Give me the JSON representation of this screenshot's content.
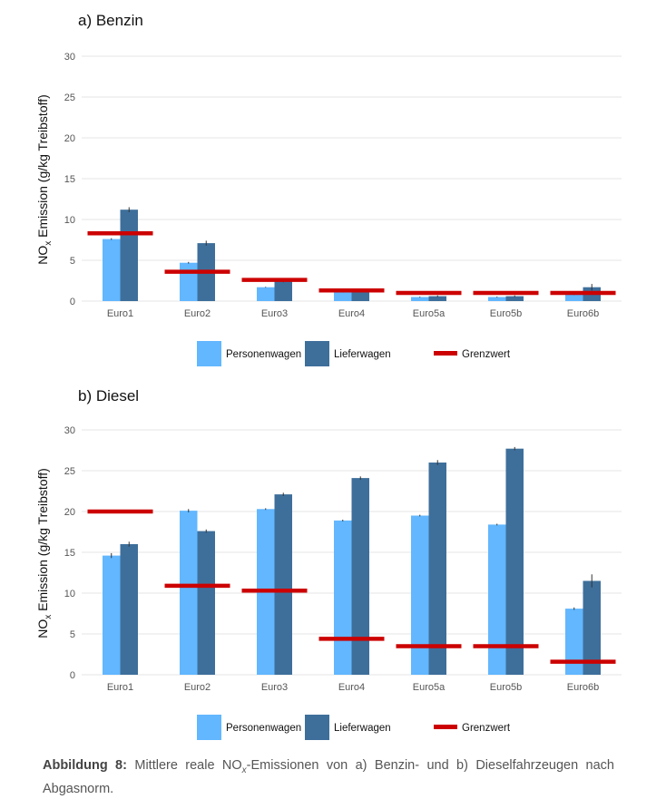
{
  "colors": {
    "personenwagen": "#62b7ff",
    "lieferwagen": "#3e6f9b",
    "grenzwert": "#cc0000",
    "grid": "#e6e6e6",
    "errorbar": "#333333"
  },
  "legend": {
    "personenwagen": "Personenwagen",
    "lieferwagen": "Lieferwagen",
    "grenzwert": "Grenzwert"
  },
  "ylabel_main": "NO",
  "ylabel_sub": "x",
  "ylabel_rest": " Emission (g/kg Treibstoff)",
  "caption": {
    "label": "Abbildung 8:",
    "text_pre": " Mittlere reale NO",
    "text_sub": "x",
    "text_post": "-Emissionen von a) Benzin- und b) Dieselfahrzeugen nach Abgasnorm."
  },
  "chart_data": [
    {
      "type": "bar",
      "title": "a) Benzin",
      "categories": [
        "Euro1",
        "Euro2",
        "Euro3",
        "Euro4",
        "Euro5a",
        "Euro5b",
        "Euro6b"
      ],
      "ylim": [
        0,
        30
      ],
      "yticks": [
        0,
        5,
        10,
        15,
        20,
        25,
        30
      ],
      "grid": true,
      "legend_position": "bottom",
      "series": [
        {
          "name": "Personenwagen",
          "values": [
            7.6,
            4.7,
            1.7,
            1.1,
            0.5,
            0.5,
            0.8
          ],
          "err": [
            0.1,
            0.1,
            0.05,
            0.05,
            0.05,
            0.05,
            0.05
          ]
        },
        {
          "name": "Lieferwagen",
          "values": [
            11.2,
            7.1,
            2.4,
            1.4,
            0.6,
            0.6,
            1.7
          ],
          "err": [
            0.3,
            0.3,
            0.1,
            0.1,
            0.1,
            0.1,
            0.4
          ]
        }
      ],
      "limits": {
        "name": "Grenzwert",
        "values": [
          8.3,
          3.6,
          2.6,
          1.3,
          1.0,
          1.0,
          1.0
        ]
      }
    },
    {
      "type": "bar",
      "title": "b) Diesel",
      "categories": [
        "Euro1",
        "Euro2",
        "Euro3",
        "Euro4",
        "Euro5a",
        "Euro5b",
        "Euro6b"
      ],
      "ylim": [
        0,
        30
      ],
      "yticks": [
        0,
        5,
        10,
        15,
        20,
        25,
        30
      ],
      "grid": true,
      "legend_position": "bottom",
      "series": [
        {
          "name": "Personenwagen",
          "values": [
            14.6,
            20.1,
            20.3,
            18.9,
            19.5,
            18.4,
            8.1
          ],
          "err": [
            0.3,
            0.2,
            0.1,
            0.1,
            0.1,
            0.1,
            0.15
          ]
        },
        {
          "name": "Lieferwagen",
          "values": [
            16.0,
            17.6,
            22.1,
            24.1,
            26.0,
            27.7,
            11.5
          ],
          "err": [
            0.3,
            0.2,
            0.2,
            0.2,
            0.3,
            0.2,
            0.8
          ]
        }
      ],
      "limits": {
        "name": "Grenzwert",
        "values": [
          20.0,
          10.9,
          10.3,
          4.4,
          3.5,
          3.5,
          1.6
        ]
      }
    }
  ]
}
